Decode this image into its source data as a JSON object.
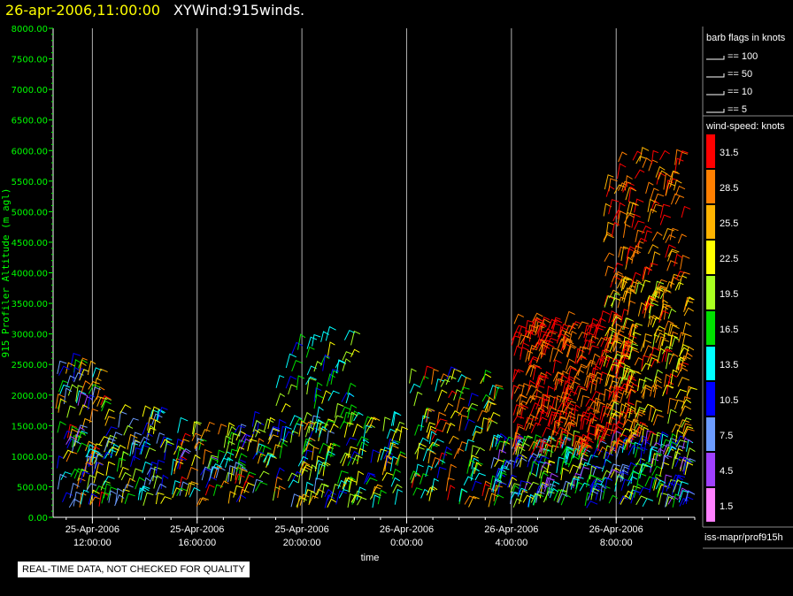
{
  "header": {
    "date_title": "26-apr-2006,11:00:00",
    "plot_title": "XYWind:915winds."
  },
  "notice": "REAL-TIME DATA, NOT CHECKED FOR QUALITY",
  "source_label": "iss-mapr/prof915h",
  "legend": {
    "barb_title": "barb flags in knots",
    "barbs": [
      {
        "label": "== 100",
        "knots": 100
      },
      {
        "label": "== 50",
        "knots": 50
      },
      {
        "label": "== 10",
        "knots": 10
      },
      {
        "label": "== 5",
        "knots": 5
      }
    ],
    "speed_title": "wind-speed: knots",
    "speed_bins": [
      {
        "label": "31.5",
        "color": "#ff0000"
      },
      {
        "label": "28.5",
        "color": "#ff7f00"
      },
      {
        "label": "25.5",
        "color": "#ffb300"
      },
      {
        "label": "22.5",
        "color": "#ffff00"
      },
      {
        "label": "19.5",
        "color": "#a8ff20"
      },
      {
        "label": "16.5",
        "color": "#00e000"
      },
      {
        "label": "13.5",
        "color": "#00ffff"
      },
      {
        "label": "10.5",
        "color": "#0000ff"
      },
      {
        "label": "7.5",
        "color": "#6c9cff"
      },
      {
        "label": "4.5",
        "color": "#a040ff"
      },
      {
        "label": "1.5",
        "color": "#ff80ff"
      }
    ]
  },
  "chart_data": {
    "type": "scatter",
    "chart_style": "wind barbs, colored by wind speed",
    "xlabel": "time",
    "ylabel": "915 Profiler Altitude (m agl)",
    "xlim": [
      "2006-04-25T10:30",
      "2006-04-26T11:00"
    ],
    "ylim": [
      0,
      8000
    ],
    "grid": "vertical lines at major x ticks",
    "legend_position": "right",
    "x_ticks": [
      {
        "date": "25-Apr-2006",
        "time": "12:00:00",
        "hours": 1.5
      },
      {
        "date": "25-Apr-2006",
        "time": "16:00:00",
        "hours": 5.5
      },
      {
        "date": "25-Apr-2006",
        "time": "20:00:00",
        "hours": 9.5
      },
      {
        "date": "26-Apr-2006",
        "time": "0:00:00",
        "hours": 13.5
      },
      {
        "date": "26-Apr-2006",
        "time": "4:00:00",
        "hours": 17.5
      },
      {
        "date": "26-Apr-2006",
        "time": "8:00:00",
        "hours": 21.5
      }
    ],
    "y_ticks": [
      "0.00",
      "500.00",
      "1000.00",
      "1500.00",
      "2000.00",
      "2500.00",
      "3000.00",
      "3500.00",
      "4000.00",
      "4500.00",
      "5000.00",
      "5500.00",
      "6000.00",
      "6500.00",
      "7000.00",
      "7500.00",
      "8000.00"
    ],
    "series": [
      {
        "hour_range": [
          0.0,
          1.9
        ],
        "alt_range": [
          150,
          2500
        ],
        "max_speed": 31.5,
        "min_speed": 4.5,
        "density": 6
      },
      {
        "hour_range": [
          1.9,
          4.5
        ],
        "alt_range": [
          150,
          1700
        ],
        "max_speed": 25.5,
        "min_speed": 7.5,
        "density": 5
      },
      {
        "hour_range": [
          4.5,
          7.5
        ],
        "alt_range": [
          150,
          1400
        ],
        "max_speed": 31.5,
        "min_speed": 4.5,
        "density": 6
      },
      {
        "hour_range": [
          7.5,
          10.5
        ],
        "alt_range": [
          150,
          1500
        ],
        "max_speed": 28.5,
        "min_speed": 7.5,
        "density": 6
      },
      {
        "hour_range": [
          8.5,
          11.5
        ],
        "alt_range": [
          1500,
          2900
        ],
        "max_speed": 22.5,
        "min_speed": 10.5,
        "density": 3
      },
      {
        "hour_range": [
          10.5,
          13.3
        ],
        "alt_range": [
          150,
          1500
        ],
        "max_speed": 25.5,
        "min_speed": 10.5,
        "density": 5
      },
      {
        "hour_range": [
          13.6,
          17.0
        ],
        "alt_range": [
          150,
          2300
        ],
        "max_speed": 31.5,
        "min_speed": 10.5,
        "density": 4
      },
      {
        "hour_range": [
          16.7,
          24.2
        ],
        "alt_range": [
          150,
          1200
        ],
        "max_speed": 22.5,
        "min_speed": 4.5,
        "density": 9
      },
      {
        "hour_range": [
          17.5,
          22.0
        ],
        "alt_range": [
          1000,
          3200
        ],
        "max_speed": 31.5,
        "min_speed": 28.5,
        "density": 9
      },
      {
        "hour_range": [
          21.0,
          24.2
        ],
        "alt_range": [
          1200,
          3800
        ],
        "max_speed": 31.5,
        "min_speed": 19.5,
        "density": 6
      },
      {
        "hour_range": [
          21.0,
          24.0
        ],
        "alt_range": [
          3800,
          5900
        ],
        "max_speed": 31.5,
        "min_speed": 25.5,
        "density": 4
      }
    ]
  }
}
